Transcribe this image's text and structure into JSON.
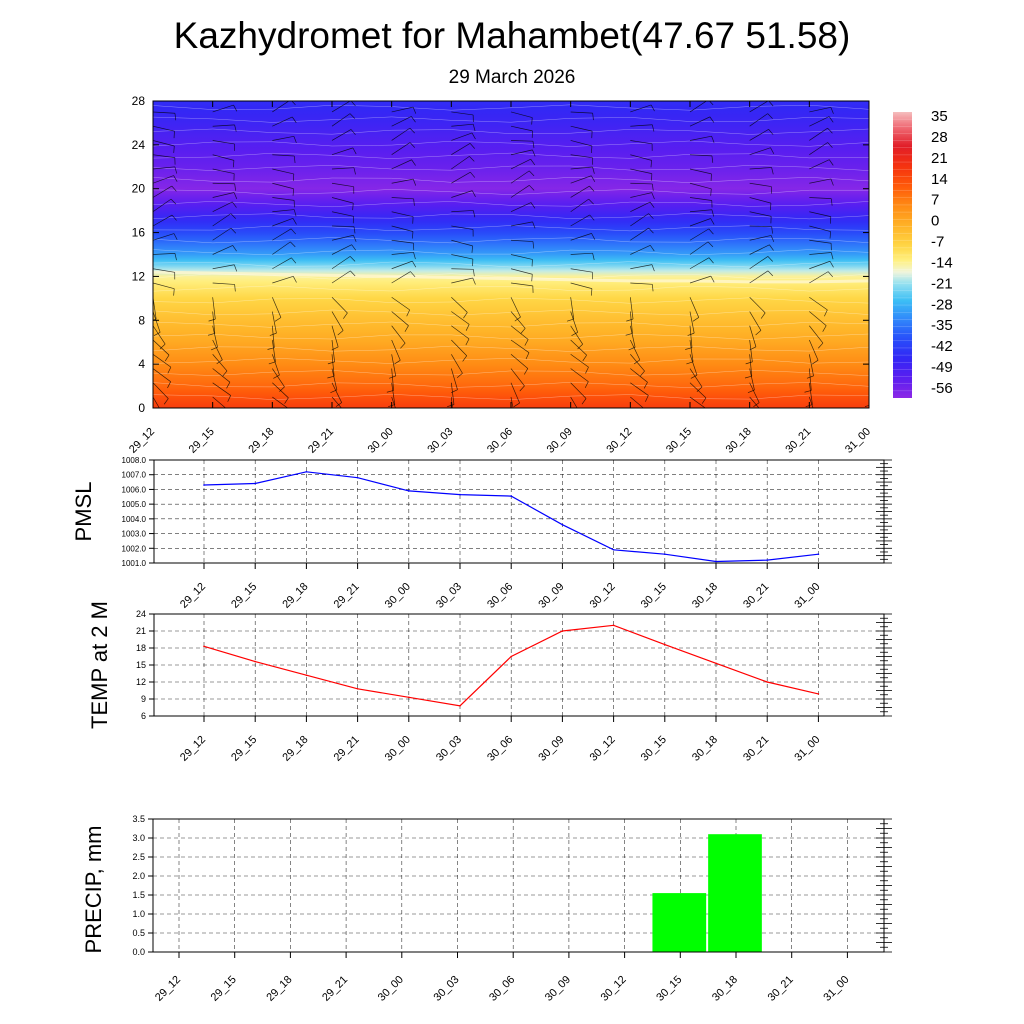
{
  "title": "Kazhydromet for Mahambet(47.67 51.58)",
  "subtitle": "29 March 2026",
  "time_labels": [
    "29_12",
    "29_15",
    "29_18",
    "29_21",
    "30_00",
    "30_03",
    "30_06",
    "30_09",
    "30_12",
    "30_15",
    "30_18",
    "30_21",
    "31_00"
  ],
  "colors": {
    "pmsl_line": "#0000ff",
    "temp_line": "#ff0000",
    "precip_bar": "#00ff00",
    "frame": "#000000",
    "grid": "#000000"
  },
  "chart_data": [
    {
      "id": "cross-section",
      "type": "heatmap",
      "title": "",
      "xlabel": "",
      "ylabel": "",
      "x": [
        "29_12",
        "29_15",
        "29_18",
        "29_21",
        "30_00",
        "30_03",
        "30_06",
        "30_09",
        "30_12",
        "30_15",
        "30_18",
        "30_21",
        "31_00"
      ],
      "ylim": [
        0,
        28
      ],
      "yticks": [
        0,
        4,
        8,
        12,
        16,
        20,
        24,
        28
      ],
      "freezing_level": [
        12.4,
        12.3,
        12.2,
        12.1,
        12.0,
        11.9,
        11.8,
        11.7,
        11.6,
        11.6,
        11.5,
        11.5,
        11.6
      ],
      "colorbar": {
        "labels": [
          "35",
          "28",
          "21",
          "14",
          "7",
          "0",
          "-7",
          "-14",
          "-21",
          "-28",
          "-35",
          "-42",
          "-49",
          "-56"
        ],
        "range": [
          -60,
          40
        ]
      },
      "winds": "wind barbs at each time and level"
    },
    {
      "id": "pmsl",
      "type": "line",
      "ylabel": "PMSL",
      "x": [
        "29_12",
        "29_15",
        "29_18",
        "29_21",
        "30_00",
        "30_03",
        "30_06",
        "30_09",
        "30_12",
        "30_15",
        "30_18",
        "30_21",
        "31_00"
      ],
      "values": [
        1006.3,
        1006.4,
        1007.2,
        1006.8,
        1005.9,
        1005.65,
        1005.55,
        1003.6,
        1001.9,
        1001.6,
        1001.1,
        1001.2,
        1001.6
      ],
      "ylim": [
        1001.0,
        1008.0
      ],
      "yticks": [
        1001.0,
        1002.0,
        1003.0,
        1004.0,
        1005.0,
        1006.0,
        1007.0,
        1008.0
      ],
      "ytick_labels": [
        "1001.0",
        "1002.0",
        "1003.0",
        "1004.0",
        "1005.0",
        "1006.0",
        "1007.0",
        "1008.0"
      ]
    },
    {
      "id": "temp",
      "type": "line",
      "ylabel": "TEMP at 2 M",
      "x": [
        "29_12",
        "29_15",
        "29_18",
        "29_21",
        "30_00",
        "30_03",
        "30_06",
        "30_09",
        "30_12",
        "30_15",
        "30_18",
        "30_21",
        "31_00"
      ],
      "values": [
        18.3,
        15.6,
        13.2,
        10.8,
        9.3,
        7.8,
        16.5,
        21.0,
        22.0,
        18.6,
        15.3,
        12.0,
        9.9
      ],
      "ylim": [
        6,
        24
      ],
      "yticks": [
        6,
        9,
        12,
        15,
        18,
        21,
        24
      ],
      "ytick_labels": [
        "6",
        "9",
        "12",
        "15",
        "18",
        "21",
        "24"
      ]
    },
    {
      "id": "precip",
      "type": "bar",
      "ylabel": "PRECIP, mm",
      "categories": [
        "29_12",
        "29_15",
        "29_18",
        "29_21",
        "30_00",
        "30_03",
        "30_06",
        "30_09",
        "30_12",
        "30_15",
        "30_18",
        "30_21",
        "31_00"
      ],
      "values": [
        0,
        0,
        0,
        0,
        0,
        0,
        0,
        0,
        0,
        1.55,
        3.1,
        0,
        0
      ],
      "ylim": [
        0,
        3.5
      ],
      "yticks": [
        0.0,
        0.5,
        1.0,
        1.5,
        2.0,
        2.5,
        3.0,
        3.5
      ],
      "ytick_labels": [
        "0.0",
        "0.5",
        "1.0",
        "1.5",
        "2.0",
        "2.5",
        "3.0",
        "3.5"
      ]
    }
  ]
}
